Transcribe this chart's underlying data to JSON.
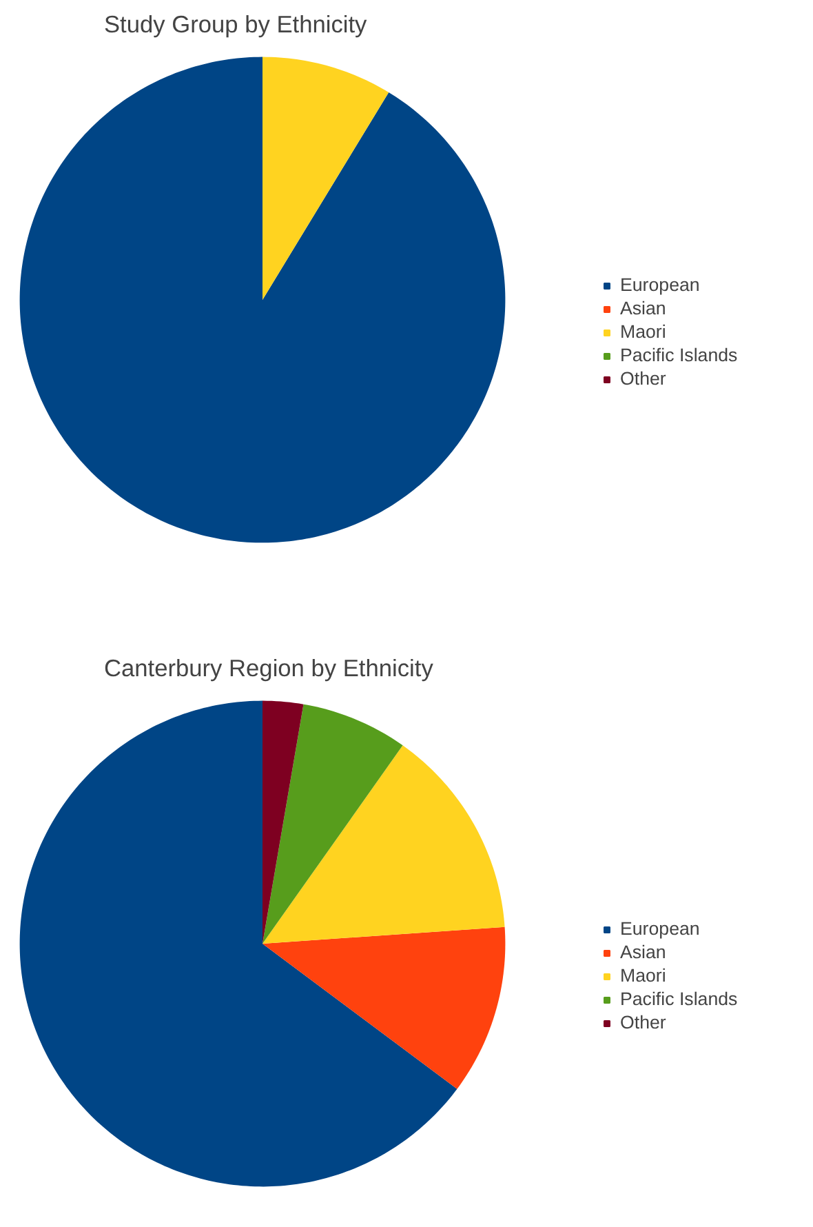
{
  "chart_data": [
    {
      "type": "pie",
      "title": "Study Group by Ethnicity",
      "categories": [
        "European",
        "Asian",
        "Maori",
        "Pacific Islands",
        "Other"
      ],
      "values": [
        91.3,
        0,
        8.7,
        0,
        0
      ],
      "colors": [
        "#004586",
        "#ff420e",
        "#ffd320",
        "#579d1c",
        "#7e0021"
      ],
      "legend": "right"
    },
    {
      "type": "pie",
      "title": "Canterbury Region by Ethnicity",
      "categories": [
        "European",
        "Asian",
        "Maori",
        "Pacific Islands",
        "Other"
      ],
      "values": [
        64.8,
        11.3,
        14.1,
        7.1,
        2.7
      ],
      "colors": [
        "#004586",
        "#ff420e",
        "#ffd320",
        "#579d1c",
        "#7e0021"
      ],
      "legend": "right"
    }
  ]
}
